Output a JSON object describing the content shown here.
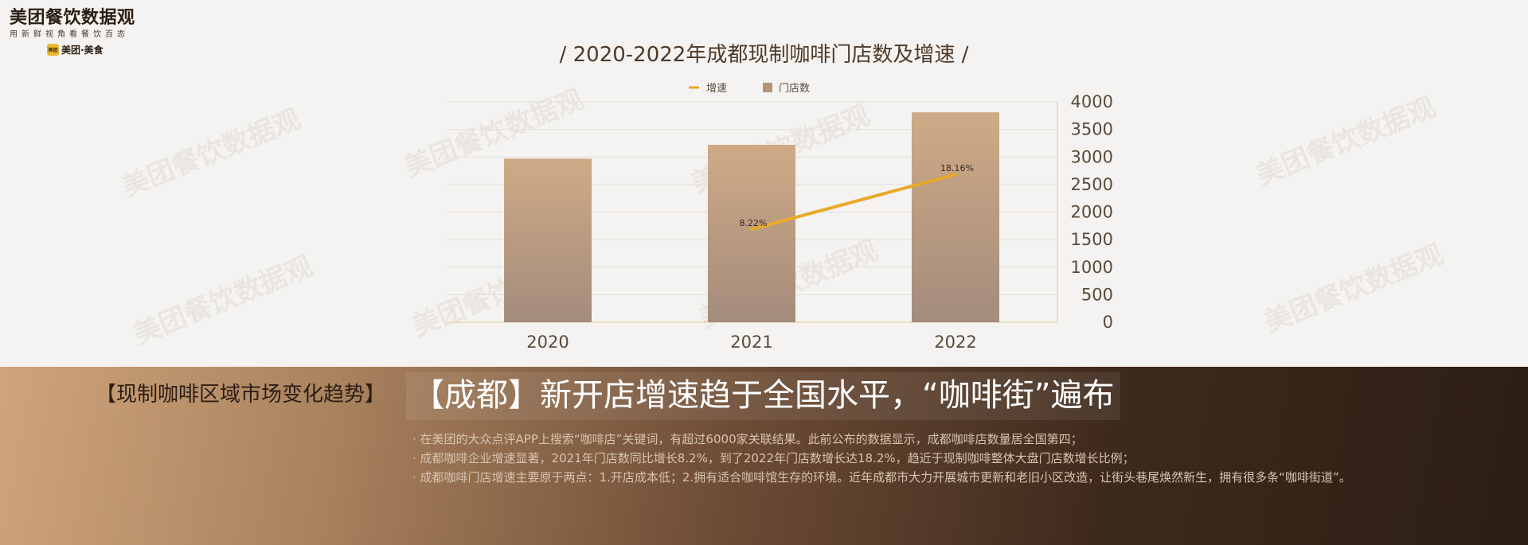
{
  "logo": {
    "title": "美团餐饮数据观",
    "subtitle": "用新鲜视角看餐饮百态",
    "brand": "美团·美食",
    "badge": "美团"
  },
  "watermark_text": "美团餐饮数据观",
  "section_label": "【现制咖啡区域市场变化趋势】",
  "headline": "【成都】新开店增速趋于全国水平，“咖啡街”遍布",
  "bullets": [
    "· 在美团的大众点评APP上搜索“咖啡店”关键词，有超过6000家关联结果。此前公布的数据显示，成都咖啡店数量居全国第四；",
    "· 成都咖啡企业增速显著，2021年门店数同比增长8.2%，到了2022年门店数增长达18.2%，趋近于现制咖啡整体大盘门店数增长比例；",
    "· 成都咖啡门店增速主要原于两点：1.开店成本低；2.拥有适合咖啡馆生存的环境。近年成都市大力开展城市更新和老旧小区改造，让街头巷尾焕然新生，拥有很多条“咖啡街道”。"
  ],
  "chart_data": {
    "type": "bar",
    "title": "/ 2020-2022年成都现制咖啡门店数及增速 /",
    "categories": [
      "2020",
      "2021",
      "2022"
    ],
    "series": [
      {
        "name": "门店数",
        "type": "bar",
        "values": [
          2970,
          3220,
          3810
        ],
        "color": "#c2a184"
      },
      {
        "name": "增速",
        "type": "line",
        "values": [
          null,
          8.22,
          18.16
        ],
        "labels": [
          "",
          "8.22%",
          "18.16%"
        ],
        "color": "#e8a92b"
      }
    ],
    "y_right_ticks": [
      "0",
      "500",
      "1000",
      "1500",
      "2000",
      "2500",
      "3000",
      "3500",
      "4000"
    ],
    "ylim": [
      0,
      4000
    ],
    "legend": [
      "增速",
      "门店数"
    ],
    "legend_position": "top",
    "grid": true
  }
}
